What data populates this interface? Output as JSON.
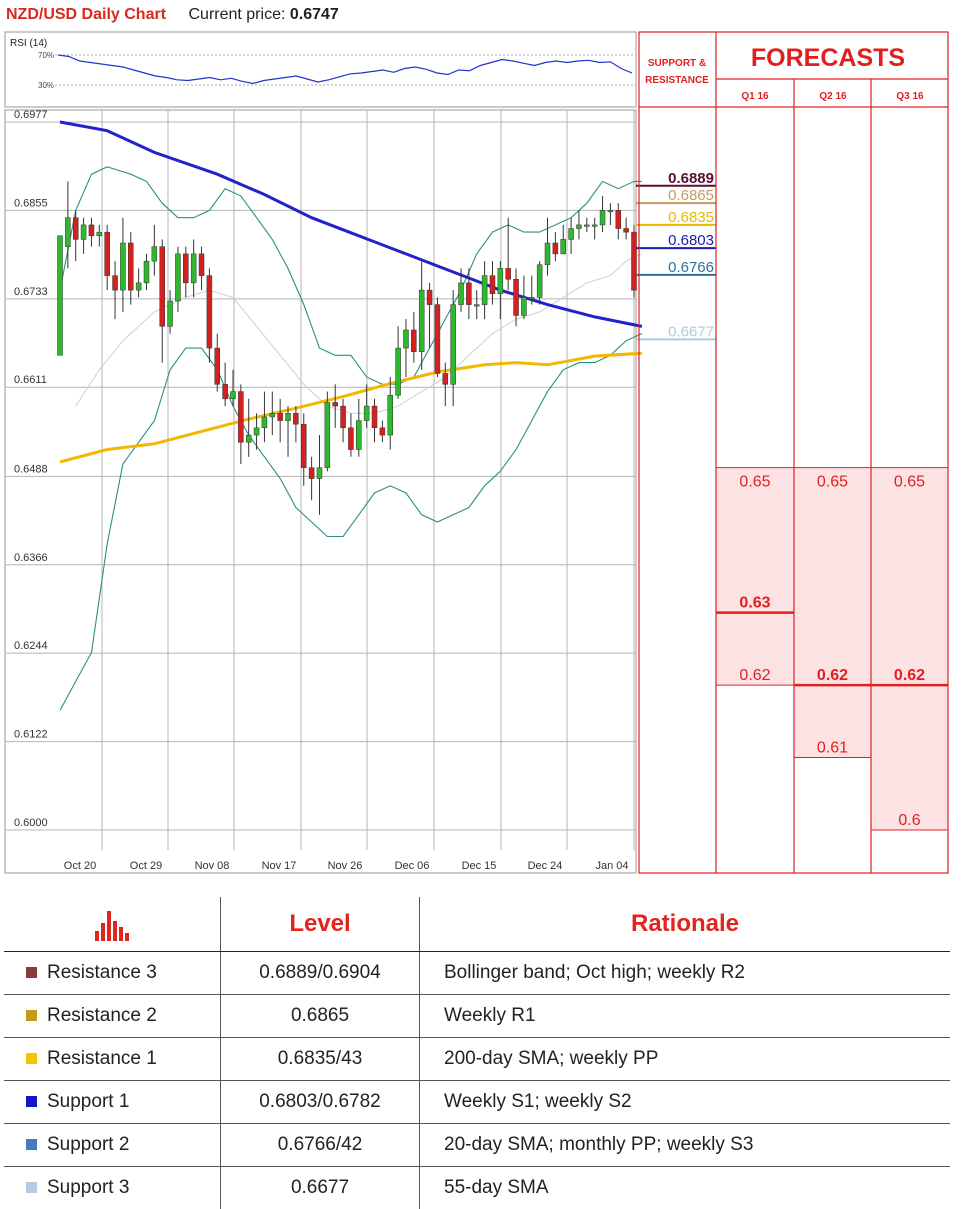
{
  "header": {
    "title": "NZD/USD Daily Chart",
    "price_label": "Current price:",
    "price_value": "0.6747"
  },
  "colors": {
    "bull": "#2eb82e",
    "bear": "#d42020",
    "sma_blue": "#2222cc",
    "sma_yellow": "#f2b800",
    "bollinger": "#2a8f86",
    "grid": "#b5b5b5",
    "forecast_red": "#e02020",
    "forecast_fill": "#fde2e4"
  },
  "chart_data": [
    {
      "type": "candlestick",
      "title": "NZD/USD Daily Chart",
      "x_tick_labels": [
        "Oct 20",
        "Oct 29",
        "Nov 08",
        "Nov 17",
        "Nov 26",
        "Dec 06",
        "Dec 15",
        "Dec 24",
        "Jan 04"
      ],
      "y_tick_labels": [
        "0.6977",
        "0.6855",
        "0.6733",
        "0.6611",
        "0.6488",
        "0.6366",
        "0.6244",
        "0.6122",
        "0.6000"
      ],
      "ylim": [
        0.6,
        0.6977
      ],
      "candles": [
        [
          0.6655,
          0.682,
          0.6805,
          0.6665
        ],
        [
          0.6805,
          0.6845,
          0.6895,
          0.6775
        ],
        [
          0.6845,
          0.6815,
          0.6855,
          0.6785
        ],
        [
          0.6815,
          0.6835,
          0.6845,
          0.6795
        ],
        [
          0.6835,
          0.682,
          0.6845,
          0.6805
        ],
        [
          0.682,
          0.6825,
          0.6835,
          0.6805
        ],
        [
          0.6825,
          0.6765,
          0.6835,
          0.6745
        ],
        [
          0.6765,
          0.6745,
          0.6785,
          0.6705
        ],
        [
          0.6745,
          0.681,
          0.6845,
          0.6715
        ],
        [
          0.681,
          0.6745,
          0.6825,
          0.6725
        ],
        [
          0.6745,
          0.6755,
          0.6775,
          0.6735
        ],
        [
          0.6755,
          0.6785,
          0.6795,
          0.6745
        ],
        [
          0.6785,
          0.6805,
          0.6835,
          0.6765
        ],
        [
          0.6805,
          0.6695,
          0.6815,
          0.6645
        ],
        [
          0.6695,
          0.673,
          0.6745,
          0.6685
        ],
        [
          0.673,
          0.6795,
          0.6805,
          0.6715
        ],
        [
          0.6795,
          0.6755,
          0.6805,
          0.6735
        ],
        [
          0.6755,
          0.6795,
          0.6815,
          0.6735
        ],
        [
          0.6795,
          0.6765,
          0.6805,
          0.6745
        ],
        [
          0.6765,
          0.6665,
          0.6775,
          0.6645
        ],
        [
          0.6665,
          0.6615,
          0.6685,
          0.6605
        ],
        [
          0.6615,
          0.6595,
          0.6645,
          0.6585
        ],
        [
          0.6595,
          0.6605,
          0.6635,
          0.6585
        ],
        [
          0.6605,
          0.6535,
          0.6615,
          0.6505
        ],
        [
          0.6535,
          0.6545,
          0.6595,
          0.6515
        ],
        [
          0.6545,
          0.6555,
          0.6575,
          0.6525
        ],
        [
          0.6555,
          0.657,
          0.6605,
          0.6535
        ],
        [
          0.657,
          0.6575,
          0.6605,
          0.6545
        ],
        [
          0.6575,
          0.6565,
          0.6595,
          0.6535
        ],
        [
          0.6565,
          0.6575,
          0.6585,
          0.6515
        ],
        [
          0.6575,
          0.656,
          0.6585,
          0.6535
        ],
        [
          0.656,
          0.65,
          0.6575,
          0.6475
        ],
        [
          0.65,
          0.6485,
          0.6515,
          0.6455
        ],
        [
          0.6485,
          0.65,
          0.6545,
          0.6435
        ],
        [
          0.65,
          0.659,
          0.6605,
          0.6495
        ],
        [
          0.659,
          0.6585,
          0.6615,
          0.6555
        ],
        [
          0.6585,
          0.6555,
          0.6595,
          0.6535
        ],
        [
          0.6555,
          0.6525,
          0.6575,
          0.6515
        ],
        [
          0.6525,
          0.6565,
          0.6595,
          0.6515
        ],
        [
          0.6565,
          0.6585,
          0.6615,
          0.6555
        ],
        [
          0.6585,
          0.6555,
          0.6595,
          0.6535
        ],
        [
          0.6555,
          0.6545,
          0.6565,
          0.6535
        ],
        [
          0.6545,
          0.66,
          0.6625,
          0.6525
        ],
        [
          0.66,
          0.6665,
          0.6695,
          0.6595
        ],
        [
          0.6665,
          0.669,
          0.6705,
          0.6625
        ],
        [
          0.669,
          0.666,
          0.6715,
          0.6645
        ],
        [
          0.666,
          0.6745,
          0.6785,
          0.6635
        ],
        [
          0.6745,
          0.6725,
          0.6755,
          0.6665
        ],
        [
          0.6725,
          0.663,
          0.6735,
          0.6625
        ],
        [
          0.663,
          0.6615,
          0.6645,
          0.6585
        ],
        [
          0.6615,
          0.6725,
          0.6745,
          0.6585
        ],
        [
          0.6725,
          0.6755,
          0.6775,
          0.6715
        ],
        [
          0.6755,
          0.6725,
          0.6775,
          0.6705
        ],
        [
          0.6725,
          0.6725,
          0.6745,
          0.6705
        ],
        [
          0.6725,
          0.6765,
          0.6785,
          0.6705
        ],
        [
          0.6765,
          0.674,
          0.6785,
          0.6725
        ],
        [
          0.674,
          0.6775,
          0.6785,
          0.6705
        ],
        [
          0.6775,
          0.676,
          0.6845,
          0.6745
        ],
        [
          0.676,
          0.671,
          0.6775,
          0.6695
        ],
        [
          0.671,
          0.6735,
          0.6765,
          0.6705
        ],
        [
          0.6735,
          0.6735,
          0.6765,
          0.6725
        ],
        [
          0.6735,
          0.678,
          0.6785,
          0.6725
        ],
        [
          0.678,
          0.681,
          0.6845,
          0.6765
        ],
        [
          0.681,
          0.6795,
          0.6825,
          0.6785
        ],
        [
          0.6795,
          0.6815,
          0.6835,
          0.6795
        ],
        [
          0.6815,
          0.683,
          0.6845,
          0.6795
        ],
        [
          0.683,
          0.6835,
          0.6855,
          0.6815
        ],
        [
          0.6835,
          0.6835,
          0.6845,
          0.6825
        ],
        [
          0.6835,
          0.6835,
          0.6845,
          0.6815
        ],
        [
          0.6835,
          0.6855,
          0.6875,
          0.6825
        ],
        [
          0.6855,
          0.6855,
          0.6865,
          0.6835
        ],
        [
          0.6855,
          0.683,
          0.6865,
          0.6815
        ],
        [
          0.683,
          0.6825,
          0.6845,
          0.6815
        ],
        [
          0.6825,
          0.6745,
          0.6835,
          0.6735
        ]
      ],
      "sma_200": [
        [
          0,
          0.6977
        ],
        [
          6,
          0.6965
        ],
        [
          12,
          0.6935
        ],
        [
          20,
          0.6905
        ],
        [
          26,
          0.6877
        ],
        [
          32,
          0.6845
        ],
        [
          38,
          0.682
        ],
        [
          44,
          0.6795
        ],
        [
          50,
          0.677
        ],
        [
          56,
          0.6745
        ],
        [
          62,
          0.6725
        ],
        [
          68,
          0.6708
        ],
        [
          74,
          0.6695
        ]
      ],
      "sma_55": [
        [
          0,
          0.6508
        ],
        [
          6,
          0.6525
        ],
        [
          12,
          0.6533
        ],
        [
          18,
          0.655
        ],
        [
          24,
          0.6567
        ],
        [
          30,
          0.6582
        ],
        [
          36,
          0.6598
        ],
        [
          42,
          0.6616
        ],
        [
          48,
          0.6632
        ],
        [
          54,
          0.6642
        ],
        [
          58,
          0.6645
        ],
        [
          62,
          0.6642
        ],
        [
          68,
          0.6654
        ],
        [
          74,
          0.6658
        ]
      ],
      "bollinger_upper": [
        [
          0,
          0.6745
        ],
        [
          2,
          0.6855
        ],
        [
          4,
          0.6905
        ],
        [
          6,
          0.6915
        ],
        [
          9,
          0.6905
        ],
        [
          11,
          0.6895
        ],
        [
          13,
          0.6865
        ],
        [
          15,
          0.6845
        ],
        [
          17,
          0.6845
        ],
        [
          19,
          0.6855
        ],
        [
          21,
          0.6885
        ],
        [
          23,
          0.6875
        ],
        [
          25,
          0.6845
        ],
        [
          27,
          0.6815
        ],
        [
          29,
          0.6775
        ],
        [
          31,
          0.6725
        ],
        [
          33,
          0.6665
        ],
        [
          35,
          0.6655
        ],
        [
          37,
          0.6655
        ],
        [
          39,
          0.6625
        ],
        [
          41,
          0.6615
        ],
        [
          43,
          0.6615
        ],
        [
          45,
          0.6625
        ],
        [
          47,
          0.6665
        ],
        [
          49,
          0.6705
        ],
        [
          51,
          0.6745
        ],
        [
          53,
          0.6795
        ],
        [
          55,
          0.6825
        ],
        [
          57,
          0.6835
        ],
        [
          59,
          0.6825
        ],
        [
          61,
          0.6825
        ],
        [
          63,
          0.6835
        ],
        [
          65,
          0.6845
        ],
        [
          67,
          0.6865
        ],
        [
          69,
          0.6895
        ],
        [
          71,
          0.6885
        ],
        [
          73,
          0.6895
        ],
        [
          74,
          0.6895
        ]
      ],
      "bollinger_lower": [
        [
          0,
          0.6165
        ],
        [
          2,
          0.6205
        ],
        [
          4,
          0.6245
        ],
        [
          6,
          0.6395
        ],
        [
          8,
          0.6505
        ],
        [
          10,
          0.6535
        ],
        [
          12,
          0.6565
        ],
        [
          14,
          0.6635
        ],
        [
          16,
          0.6665
        ],
        [
          18,
          0.6665
        ],
        [
          20,
          0.6635
        ],
        [
          22,
          0.6585
        ],
        [
          24,
          0.6545
        ],
        [
          26,
          0.6515
        ],
        [
          28,
          0.6485
        ],
        [
          30,
          0.6445
        ],
        [
          32,
          0.6425
        ],
        [
          34,
          0.6405
        ],
        [
          36,
          0.6405
        ],
        [
          38,
          0.6435
        ],
        [
          40,
          0.6465
        ],
        [
          42,
          0.6475
        ],
        [
          44,
          0.6465
        ],
        [
          46,
          0.6435
        ],
        [
          48,
          0.6425
        ],
        [
          50,
          0.6435
        ],
        [
          52,
          0.6445
        ],
        [
          54,
          0.6475
        ],
        [
          56,
          0.6495
        ],
        [
          58,
          0.6525
        ],
        [
          60,
          0.6565
        ],
        [
          62,
          0.6605
        ],
        [
          64,
          0.6635
        ],
        [
          66,
          0.6645
        ],
        [
          68,
          0.6645
        ],
        [
          70,
          0.6655
        ],
        [
          72,
          0.6675
        ],
        [
          74,
          0.6685
        ]
      ],
      "bollinger_mid": [
        [
          2,
          0.6585
        ],
        [
          5,
          0.6635
        ],
        [
          8,
          0.6675
        ],
        [
          12,
          0.6715
        ],
        [
          16,
          0.6735
        ],
        [
          19,
          0.6745
        ],
        [
          22,
          0.6735
        ],
        [
          25,
          0.6695
        ],
        [
          28,
          0.6655
        ],
        [
          31,
          0.6615
        ],
        [
          34,
          0.6585
        ],
        [
          37,
          0.6575
        ],
        [
          40,
          0.6575
        ],
        [
          43,
          0.6585
        ],
        [
          46,
          0.6605
        ],
        [
          49,
          0.6625
        ],
        [
          52,
          0.6655
        ],
        [
          55,
          0.6685
        ],
        [
          58,
          0.6705
        ],
        [
          61,
          0.6715
        ],
        [
          64,
          0.6735
        ],
        [
          67,
          0.6755
        ],
        [
          70,
          0.6765
        ],
        [
          72,
          0.6785
        ],
        [
          74,
          0.6795
        ]
      ]
    },
    {
      "type": "line",
      "title": "RSI (14)",
      "y_tick_labels": [
        "70%",
        "30%"
      ],
      "ylim": [
        0,
        100
      ],
      "values": [
        70,
        68,
        62,
        60,
        58,
        56,
        54,
        50,
        46,
        42,
        40,
        37,
        36,
        38,
        40,
        37,
        39,
        35,
        32,
        36,
        38,
        40,
        42,
        38,
        34,
        37,
        41,
        45,
        46,
        48,
        50,
        47,
        52,
        54,
        51,
        46,
        44,
        50,
        49,
        56,
        60,
        64,
        62,
        59,
        56,
        60,
        62,
        60,
        62,
        63,
        60,
        61,
        52,
        46
      ]
    },
    {
      "type": "table",
      "title": "FORECASTS",
      "support_resistance_header": [
        "SUPPORT &",
        "RESISTANCE"
      ],
      "columns": [
        "Q1 16",
        "Q2 16",
        "Q3 16"
      ],
      "levels": [
        {
          "label": "0.6889",
          "value": 0.6889,
          "color": "#5a1030",
          "bold": true
        },
        {
          "label": "0.6865",
          "value": 0.6865,
          "color": "#c59a5a",
          "bold": false
        },
        {
          "label": "0.6835",
          "value": 0.6835,
          "color": "#e8b800",
          "bold": false
        },
        {
          "label": "0.6803",
          "value": 0.6803,
          "color": "#1a1ab0",
          "bold": false
        },
        {
          "label": "0.6766",
          "value": 0.6766,
          "color": "#2f6f9a",
          "bold": false
        },
        {
          "label": "0.6677",
          "value": 0.6677,
          "color": "#a7cfd6",
          "bold": false
        }
      ],
      "forecast_ranges": [
        {
          "high": 0.65,
          "high_label": "0.65",
          "mid": 0.63,
          "mid_label": "0.63",
          "low": 0.62,
          "low_label": "0.62",
          "bold": "mid"
        },
        {
          "high": 0.65,
          "high_label": "0.65",
          "mid": 0.62,
          "mid_label": "0.62",
          "low": 0.61,
          "low_label": "0.61",
          "bold": "mid"
        },
        {
          "high": 0.65,
          "high_label": "0.65",
          "mid": 0.62,
          "mid_label": "0.62",
          "low": 0.6,
          "low_label": "0.6",
          "bold": "mid"
        }
      ]
    }
  ],
  "levels_table": {
    "headers": {
      "level": "Level",
      "rationale": "Rationale"
    },
    "rows": [
      {
        "name": "Resistance 3",
        "level": "0.6889/0.6904",
        "rationale": "Bollinger band; Oct high; weekly R2",
        "color": "#8b3a3a"
      },
      {
        "name": "Resistance 2",
        "level": "0.6865",
        "rationale": "Weekly R1",
        "color": "#c49a1a"
      },
      {
        "name": "Resistance 1",
        "level": "0.6835/43",
        "rationale": "200-day SMA; weekly PP",
        "color": "#f5c400"
      },
      {
        "name": "Support 1",
        "level": "0.6803/0.6782",
        "rationale": "Weekly S1; weekly S2",
        "color": "#1414c8"
      },
      {
        "name": "Support 2",
        "level": "0.6766/42",
        "rationale": "20-day SMA; monthly PP; weekly S3",
        "color": "#4a78b8"
      },
      {
        "name": "Support 3",
        "level": "0.6677",
        "rationale": "55-day SMA",
        "color": "#b9c9e3"
      }
    ]
  }
}
